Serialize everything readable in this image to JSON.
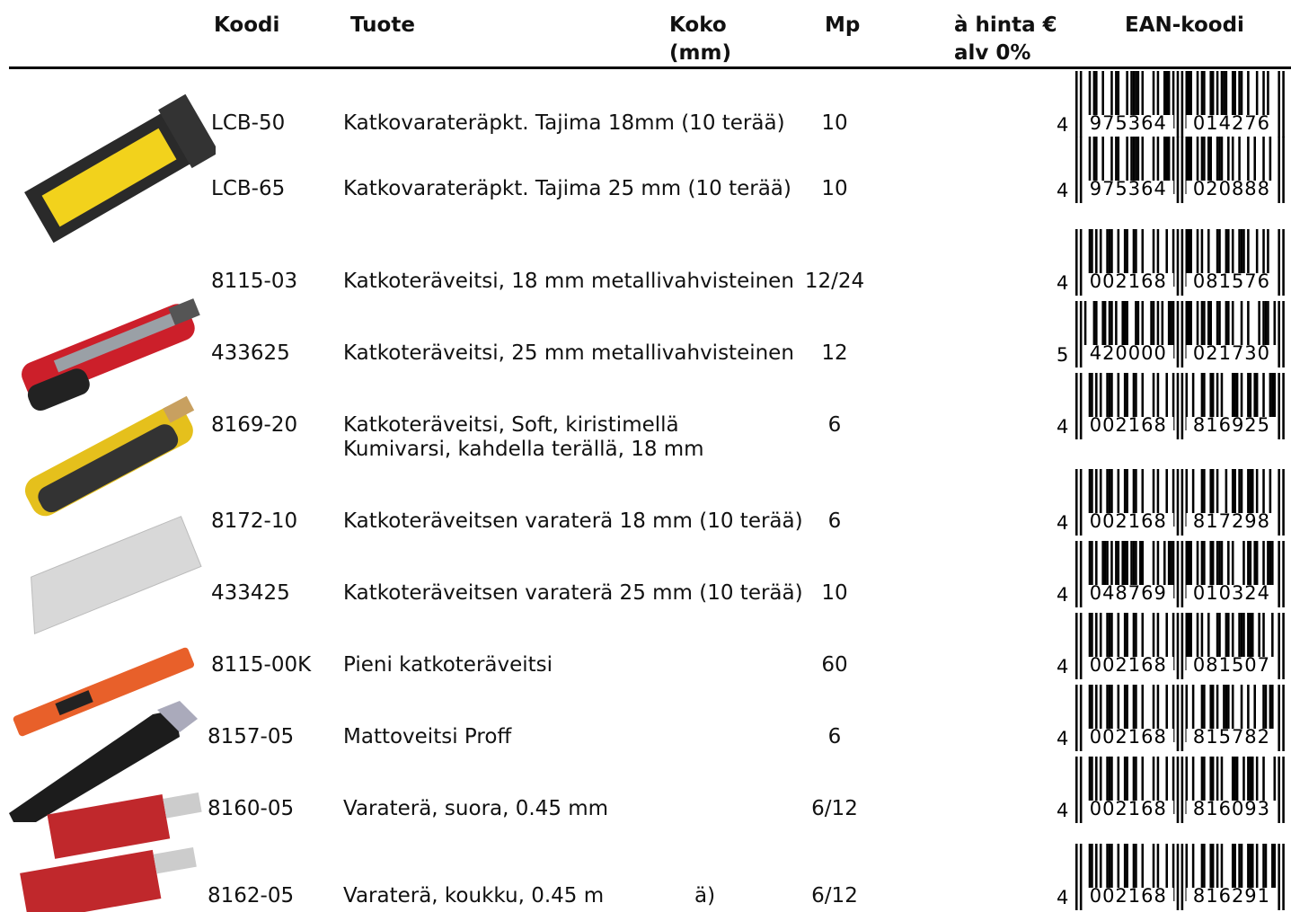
{
  "table": {
    "headers": {
      "code": "Koodi",
      "product": "Tuote",
      "size": [
        "Koko",
        "(mm)"
      ],
      "mp": "Mp",
      "price": [
        "à hinta €",
        "alv 0%"
      ],
      "ean": "EAN-koodi"
    },
    "rows": [
      {
        "code": "LCB-50",
        "product": [
          "Katkovarateräpkt. Tajima 18mm (10 terää)"
        ],
        "mp": "10",
        "ean": {
          "lead": "4",
          "left": "975364",
          "right": "014276"
        }
      },
      {
        "code": "LCB-65",
        "product": [
          "Katkovarateräpkt. Tajima 25 mm (10 terää)"
        ],
        "mp": "10",
        "ean": {
          "lead": "4",
          "left": "975364",
          "right": "020888"
        }
      },
      {
        "code": "8115-03",
        "product": [
          "Katkoteräveitsi, 18 mm metallivahvisteinen"
        ],
        "mp": "12/24",
        "ean": {
          "lead": "4",
          "left": "002168",
          "right": "081576"
        }
      },
      {
        "code": "433625",
        "product": [
          "Katkoteräveitsi, 25 mm metallivahvisteinen"
        ],
        "mp": "12",
        "ean": {
          "lead": "5",
          "left": "420000",
          "right": "021730"
        }
      },
      {
        "code": "8169-20",
        "product": [
          "Katkoteräveitsi, Soft, kiristimellä",
          "Kumivarsi, kahdella terällä, 18 mm"
        ],
        "mp": "6",
        "ean": {
          "lead": "4",
          "left": "002168",
          "right": "816925"
        }
      },
      {
        "code": "8172-10",
        "product": [
          "Katkoteräveitsen varaterä 18 mm (10 terää)"
        ],
        "mp": "6",
        "ean": {
          "lead": "4",
          "left": "002168",
          "right": "817298"
        }
      },
      {
        "code": "433425",
        "product": [
          "Katkoteräveitsen varaterä 25 mm (10 terää)"
        ],
        "mp": "10",
        "ean": {
          "lead": "4",
          "left": "048769",
          "right": "010324"
        }
      },
      {
        "code": "8115-00K",
        "product": [
          "Pieni katkoteräveitsi"
        ],
        "mp": "60",
        "ean": {
          "lead": "4",
          "left": "002168",
          "right": "081507"
        }
      },
      {
        "code": "8157-05",
        "product": [
          "Mattoveitsi Proff"
        ],
        "mp": "6",
        "ean": {
          "lead": "4",
          "left": "002168",
          "right": "815782"
        }
      },
      {
        "code": "8160-05",
        "product": [
          "Varaterä, suora, 0.45 mm"
        ],
        "mp": "6/12",
        "ean": {
          "lead": "4",
          "left": "002168",
          "right": "816093"
        }
      },
      {
        "code": "8162-05",
        "product": [
          "Varaterä, koukku, 0.45 m"
        ],
        "size": "ä)",
        "mp": "6/12",
        "ean": {
          "lead": "4",
          "left": "002168",
          "right": "816291"
        }
      }
    ]
  }
}
